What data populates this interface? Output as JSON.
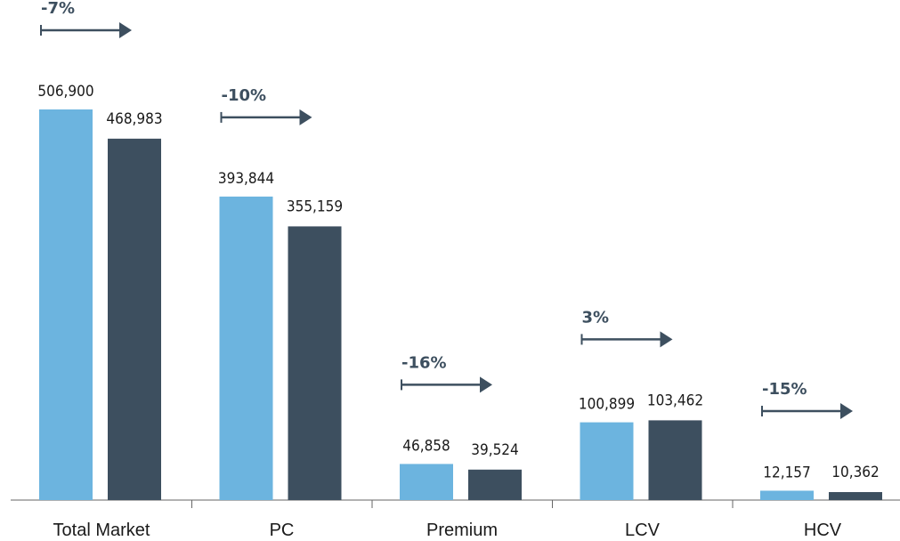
{
  "chart_data": {
    "type": "bar",
    "categories": [
      "Total Market",
      "PC",
      "Premium",
      "LCV",
      "HCV"
    ],
    "series": [
      {
        "values": [
          506900,
          393844,
          46858,
          100899,
          12157
        ],
        "value_labels": [
          "506,900",
          "393,844",
          "46,858",
          "100,899",
          "12,157"
        ]
      },
      {
        "values": [
          468983,
          355159,
          39524,
          103462,
          10362
        ],
        "value_labels": [
          "468,983",
          "355,159",
          "39,524",
          "103,462",
          "10,362"
        ]
      }
    ],
    "changes": [
      "-7%",
      "-10%",
      "-16%",
      "3%",
      "-15%"
    ],
    "ylim": [
      0,
      506900
    ],
    "grid": false,
    "legend": "none",
    "colors": {
      "series_1": "#6cb4df",
      "series_2": "#3d4f5f",
      "change_arrow": "#3d4f5f",
      "axis": "#666666"
    }
  }
}
